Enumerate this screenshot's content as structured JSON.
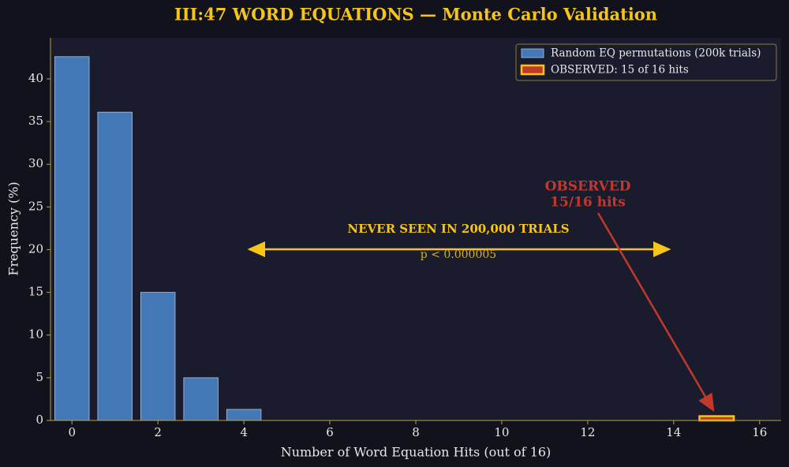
{
  "chart_data": {
    "type": "bar",
    "title": "III:47 WORD EQUATIONS — Monte Carlo Validation",
    "x_label": "Number of Word Equation Hits (out of 16)",
    "y_label": "Frequency (%)",
    "series": [
      {
        "name": "Random EQ permutations (200k trials)",
        "color": "#4377b6",
        "edge_color": "#a9c4e6",
        "x": [
          0,
          1,
          2,
          3,
          4
        ],
        "values": [
          42.6,
          36.1,
          15.0,
          5.0,
          1.3
        ]
      },
      {
        "name": "OBSERVED: 15 of 16 hits",
        "color": "#c0392b",
        "edge_color": "#f5c518",
        "x": [
          15
        ],
        "values": [
          0.5
        ]
      }
    ],
    "xlim": [
      -0.5,
      16.5
    ],
    "xticks": [
      0,
      2,
      4,
      6,
      8,
      10,
      12,
      14,
      16
    ],
    "ylim": [
      0,
      44.8
    ],
    "yticks": [
      0,
      5,
      10,
      15,
      20,
      25,
      30,
      35,
      40
    ],
    "legend": "upper right",
    "annotations": {
      "range_label": "NEVER SEEN IN 200,000 TRIALS",
      "p_value": "p < 0.000005",
      "observed_lines": [
        "OBSERVED",
        "15/16 hits"
      ]
    }
  }
}
